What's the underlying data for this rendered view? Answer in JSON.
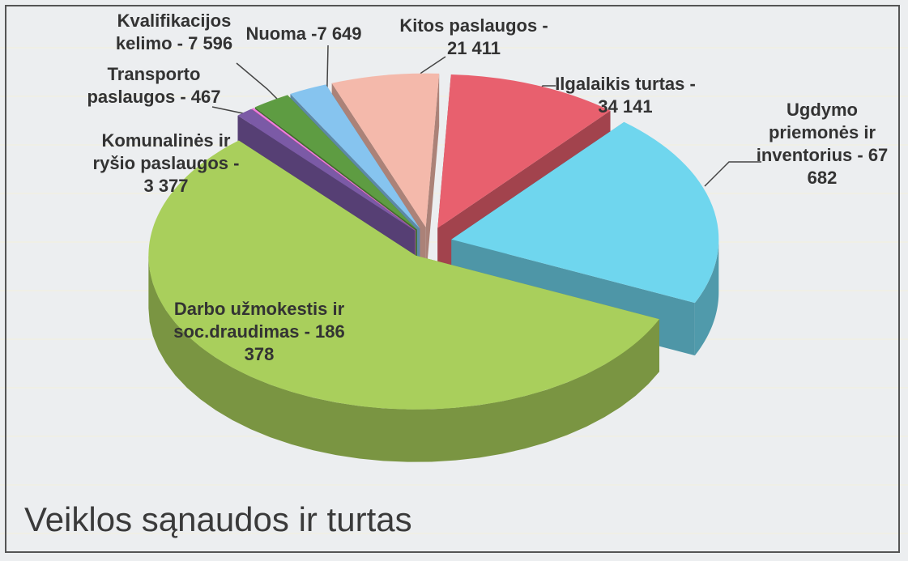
{
  "chart_data": {
    "type": "pie3d",
    "title": "Veiklos sąnaudos ir turtas",
    "values": [
      34141,
      67682,
      186378,
      3377,
      467,
      7596,
      7649,
      21411
    ],
    "value_labels": [
      "Ilgalaikis turtas - 34 141",
      "Ugdymo priemonės ir inventorius - 67 682",
      "Darbo užmokestis ir soc.draudimas - 186 378",
      "Komunalinės ir ryšio paslaugos - 3 377",
      "Transporto paslaugos - 467",
      "Kvalifikacijos kelimo - 7 596",
      "Nuoma -7 649",
      "Kitos paslaugos - 21 411"
    ],
    "colors": [
      "#e8606e",
      "#6fd6ee",
      "#a9cf5c",
      "#7b5aa6",
      "#f07ee0",
      "#5e9c42",
      "#86c4ef",
      "#f4b9ab"
    ]
  }
}
